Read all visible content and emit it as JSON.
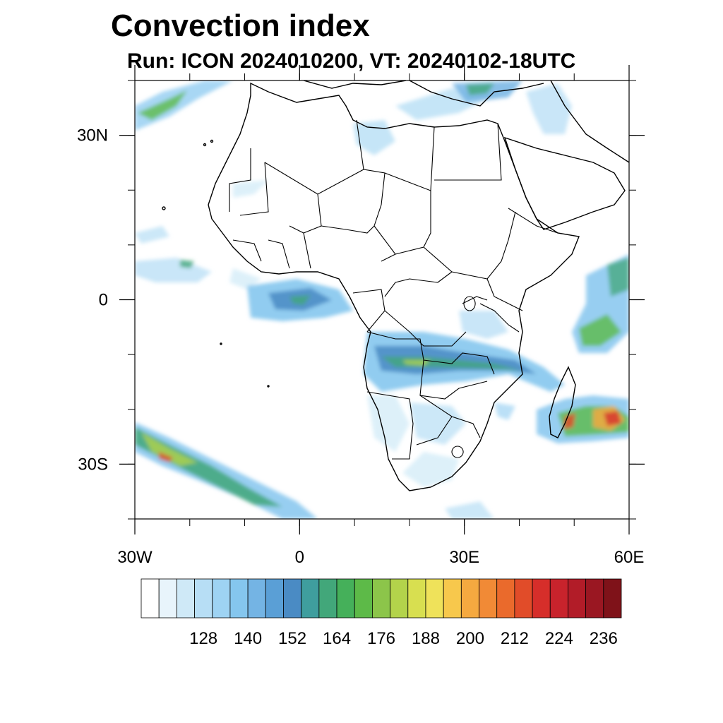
{
  "title": "Convection index",
  "subtitle": "Run: ICON 2024010200,  VT: 20240102-18UTC",
  "map": {
    "lon_range": [
      -30,
      60
    ],
    "lat_range": [
      -40,
      40
    ],
    "lat_ticks": [
      {
        "value": 30,
        "label": "30N"
      },
      {
        "value": 0,
        "label": "0"
      },
      {
        "value": -30,
        "label": "30S"
      }
    ],
    "lon_ticks": [
      {
        "value": -30,
        "label": "30W"
      },
      {
        "value": 0,
        "label": "0"
      },
      {
        "value": 30,
        "label": "30E"
      },
      {
        "value": 60,
        "label": "60E"
      }
    ]
  },
  "colorbar": {
    "labels": [
      "128",
      "140",
      "152",
      "164",
      "176",
      "188",
      "200",
      "212",
      "224",
      "236"
    ],
    "colors": [
      "#ffffff",
      "#e8f4fb",
      "#cfe9f7",
      "#b7def5",
      "#9ed3f3",
      "#85c6ee",
      "#74b4e4",
      "#5a9fd6",
      "#4a8bc4",
      "#3f9e9e",
      "#42a77a",
      "#45b05a",
      "#5dba48",
      "#8cc54a",
      "#b3d34b",
      "#d8df50",
      "#efe25a",
      "#f7c84c",
      "#f5a940",
      "#f18a36",
      "#ea6a2c",
      "#e14c29",
      "#d62e2a",
      "#c8232c",
      "#b21c28",
      "#9a1722",
      "#7f1219"
    ]
  }
}
